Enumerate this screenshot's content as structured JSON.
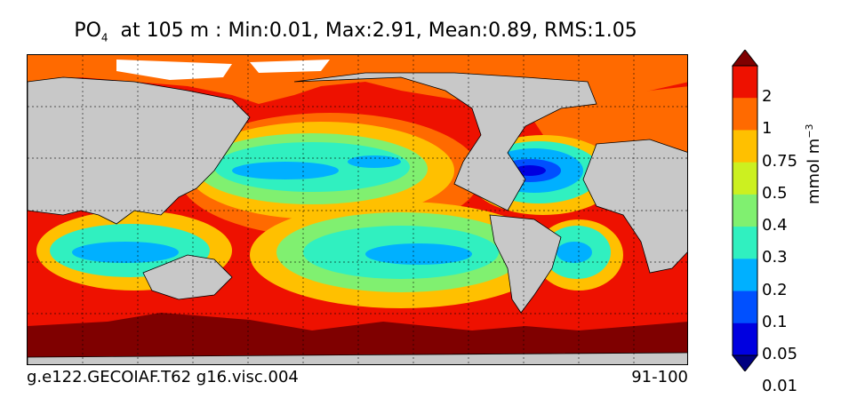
{
  "title": {
    "variable": "PO",
    "subscript": "4",
    "rest": "  at 105 m : Min:0.01, Max:2.91, Mean:0.89, RMS:1.05"
  },
  "footer": {
    "case_name": "g.e122.GECOIAF.T62 g16.visc.004",
    "years": "91-100"
  },
  "colorbar": {
    "unit_base": "mmol m",
    "unit_exp": "−3",
    "levels": [
      "2",
      "1",
      "0.75",
      "0.5",
      "0.4",
      "0.3",
      "0.2",
      "0.1",
      "0.05",
      "0.01"
    ],
    "colors": [
      "#7f0000",
      "#ee1100",
      "#ff6a00",
      "#ffc000",
      "#ccf020",
      "#80f070",
      "#30f0c0",
      "#00b0ff",
      "#0050ff",
      "#0000e0",
      "#000080"
    ]
  },
  "colors": {
    "land": "#c8c8c8",
    "ice": "#ffffff"
  }
}
